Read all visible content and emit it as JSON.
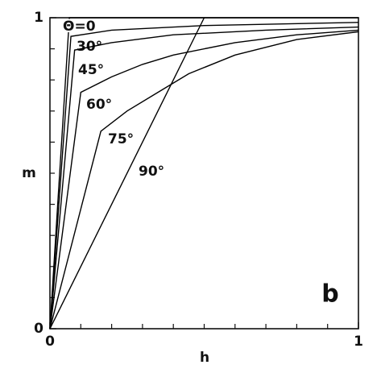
{
  "chart_data": {
    "type": "line",
    "annotation": "b",
    "xlabel": "h",
    "ylabel": "m",
    "xlim": [
      0,
      1
    ],
    "ylim": [
      0,
      1
    ],
    "xticks": [
      0,
      1
    ],
    "yticks": [
      0,
      1
    ],
    "xminorticks": [
      0.1,
      0.2,
      0.3,
      0.4,
      0.5,
      0.6,
      0.7,
      0.8,
      0.9
    ],
    "yminorticks": [
      0.1,
      0.2,
      0.3,
      0.4,
      0.5,
      0.6,
      0.7,
      0.8,
      0.9
    ],
    "series": [
      {
        "name": "Θ=0",
        "color": "#000000",
        "x": [
          0,
          0.063,
          1
        ],
        "values": [
          0,
          1,
          1
        ]
      },
      {
        "name": "30°",
        "color": "#000000",
        "x": [
          0,
          0.068,
          0.2,
          0.5,
          1
        ],
        "values": [
          0,
          0.94,
          0.96,
          0.975,
          0.985
        ]
      },
      {
        "name": "45°",
        "color": "#000000",
        "x": [
          0,
          0.08,
          0.2,
          0.4,
          0.7,
          1
        ],
        "values": [
          0,
          0.896,
          0.92,
          0.945,
          0.96,
          0.97
        ]
      },
      {
        "name": "60°",
        "color": "#000000",
        "x": [
          0,
          0.1,
          0.2,
          0.3,
          0.4,
          0.6,
          0.8,
          1
        ],
        "values": [
          0,
          0.76,
          0.81,
          0.85,
          0.88,
          0.92,
          0.945,
          0.96
        ]
      },
      {
        "name": "75°",
        "color": "#000000",
        "x": [
          0,
          0.165,
          0.25,
          0.35,
          0.45,
          0.6,
          0.8,
          1
        ],
        "values": [
          0,
          0.635,
          0.7,
          0.76,
          0.82,
          0.88,
          0.93,
          0.955
        ]
      },
      {
        "name": "90°",
        "color": "#000000",
        "x": [
          0,
          0.5
        ],
        "values": [
          0,
          1
        ]
      }
    ]
  }
}
